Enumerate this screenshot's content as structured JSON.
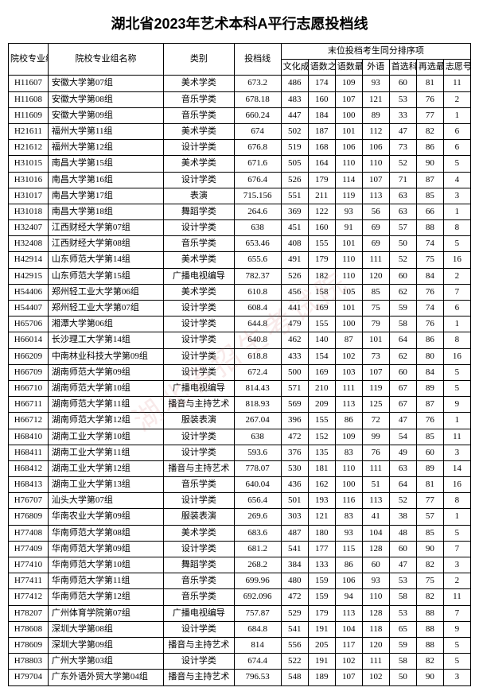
{
  "title": "湖北省2023年艺术本科A平行志愿投档线",
  "watermark": "湖北省招生考试院",
  "header": {
    "code": "院校专业组代号",
    "name": "院校专业组名称",
    "category": "类别",
    "score": "投档线",
    "tieGroup": "末位投档考生同分排序项",
    "sub": [
      "文化成绩",
      "语数之和",
      "语数最高",
      "外语",
      "首选科目",
      "再选最高",
      "志愿号"
    ]
  },
  "rows": [
    {
      "code": "H11607",
      "name": "安徽大学第07组",
      "cat": "美术学类",
      "score": "673.2",
      "s": [
        "486",
        "174",
        "109",
        "93",
        "60",
        "81",
        "11"
      ]
    },
    {
      "code": "H11608",
      "name": "安徽大学第08组",
      "cat": "音乐学类",
      "score": "678.18",
      "s": [
        "483",
        "160",
        "107",
        "121",
        "53",
        "76",
        "2"
      ]
    },
    {
      "code": "H11609",
      "name": "安徽大学第09组",
      "cat": "音乐学类",
      "score": "660.24",
      "s": [
        "447",
        "184",
        "100",
        "89",
        "33",
        "77",
        "1"
      ]
    },
    {
      "code": "H21611",
      "name": "福州大学第11组",
      "cat": "美术学类",
      "score": "674",
      "s": [
        "502",
        "187",
        "101",
        "112",
        "47",
        "82",
        "6"
      ]
    },
    {
      "code": "H21612",
      "name": "福州大学第12组",
      "cat": "设计学类",
      "score": "676.8",
      "s": [
        "519",
        "168",
        "106",
        "106",
        "73",
        "86",
        "6"
      ]
    },
    {
      "code": "H31015",
      "name": "南昌大学第15组",
      "cat": "美术学类",
      "score": "671.6",
      "s": [
        "505",
        "164",
        "110",
        "110",
        "52",
        "90",
        "5"
      ]
    },
    {
      "code": "H31016",
      "name": "南昌大学第16组",
      "cat": "设计学类",
      "score": "676.4",
      "s": [
        "526",
        "179",
        "114",
        "107",
        "71",
        "87",
        "4"
      ]
    },
    {
      "code": "H31017",
      "name": "南昌大学第17组",
      "cat": "表演",
      "score": "715.156",
      "s": [
        "551",
        "211",
        "119",
        "113",
        "63",
        "85",
        "3"
      ]
    },
    {
      "code": "H31018",
      "name": "南昌大学第18组",
      "cat": "舞蹈学类",
      "score": "264.6",
      "s": [
        "369",
        "122",
        "93",
        "56",
        "63",
        "66",
        "1"
      ]
    },
    {
      "code": "H32407",
      "name": "江西财经大学第07组",
      "cat": "设计学类",
      "score": "638",
      "s": [
        "451",
        "160",
        "91",
        "69",
        "57",
        "88",
        "8"
      ]
    },
    {
      "code": "H32408",
      "name": "江西财经大学第08组",
      "cat": "音乐学类",
      "score": "653.46",
      "s": [
        "408",
        "155",
        "101",
        "69",
        "50",
        "74",
        "5"
      ]
    },
    {
      "code": "H42914",
      "name": "山东师范大学第14组",
      "cat": "美术学类",
      "score": "655.6",
      "s": [
        "491",
        "179",
        "110",
        "111",
        "52",
        "75",
        "16"
      ]
    },
    {
      "code": "H42915",
      "name": "山东师范大学第15组",
      "cat": "广播电视编导",
      "score": "782.37",
      "s": [
        "526",
        "182",
        "110",
        "120",
        "60",
        "84",
        "2"
      ]
    },
    {
      "code": "H54406",
      "name": "郑州轻工业大学第06组",
      "cat": "美术学类",
      "score": "610.8",
      "s": [
        "456",
        "158",
        "105",
        "85",
        "62",
        "76",
        "7"
      ]
    },
    {
      "code": "H54407",
      "name": "郑州轻工业大学第07组",
      "cat": "设计学类",
      "score": "608.4",
      "s": [
        "441",
        "169",
        "101",
        "75",
        "59",
        "74",
        "6"
      ]
    },
    {
      "code": "H65706",
      "name": "湘潭大学第06组",
      "cat": "设计学类",
      "score": "644.8",
      "s": [
        "479",
        "155",
        "100",
        "79",
        "58",
        "76",
        "1"
      ]
    },
    {
      "code": "H66014",
      "name": "长沙理工大学第14组",
      "cat": "设计学类",
      "score": "640.8",
      "s": [
        "462",
        "140",
        "87",
        "101",
        "64",
        "86",
        "8"
      ]
    },
    {
      "code": "H66209",
      "name": "中南林业科技大学第09组",
      "cat": "设计学类",
      "score": "618.8",
      "s": [
        "433",
        "154",
        "102",
        "73",
        "62",
        "80",
        "16"
      ]
    },
    {
      "code": "H66709",
      "name": "湖南师范大学第09组",
      "cat": "设计学类",
      "score": "672.4",
      "s": [
        "500",
        "169",
        "103",
        "107",
        "60",
        "84",
        "5"
      ]
    },
    {
      "code": "H66710",
      "name": "湖南师范大学第10组",
      "cat": "广播电视编导",
      "score": "814.43",
      "s": [
        "571",
        "210",
        "111",
        "119",
        "67",
        "89",
        "5"
      ]
    },
    {
      "code": "H66711",
      "name": "湖南师范大学第11组",
      "cat": "播音与主持艺术",
      "score": "818.93",
      "s": [
        "569",
        "209",
        "113",
        "125",
        "67",
        "87",
        "9"
      ]
    },
    {
      "code": "H66712",
      "name": "湖南师范大学第12组",
      "cat": "服装表演",
      "score": "267.04",
      "s": [
        "396",
        "155",
        "86",
        "72",
        "47",
        "76",
        "1"
      ]
    },
    {
      "code": "H68410",
      "name": "湖南工业大学第10组",
      "cat": "设计学类",
      "score": "638",
      "s": [
        "472",
        "152",
        "109",
        "99",
        "54",
        "85",
        "11"
      ]
    },
    {
      "code": "H68411",
      "name": "湖南工业大学第11组",
      "cat": "设计学类",
      "score": "593.6",
      "s": [
        "376",
        "135",
        "83",
        "76",
        "49",
        "60",
        "3"
      ]
    },
    {
      "code": "H68412",
      "name": "湖南工业大学第12组",
      "cat": "播音与主持艺术",
      "score": "778.07",
      "s": [
        "530",
        "181",
        "110",
        "111",
        "63",
        "89",
        "14"
      ]
    },
    {
      "code": "H68413",
      "name": "湖南工业大学第13组",
      "cat": "音乐学类",
      "score": "640.04",
      "s": [
        "436",
        "162",
        "100",
        "51",
        "64",
        "81",
        "16"
      ]
    },
    {
      "code": "H76707",
      "name": "汕头大学第07组",
      "cat": "设计学类",
      "score": "656.4",
      "s": [
        "501",
        "193",
        "116",
        "113",
        "52",
        "77",
        "8"
      ]
    },
    {
      "code": "H76809",
      "name": "华南农业大学第09组",
      "cat": "服装表演",
      "score": "269.6",
      "s": [
        "303",
        "121",
        "83",
        "41",
        "38",
        "57",
        "1"
      ]
    },
    {
      "code": "H77408",
      "name": "华南师范大学第08组",
      "cat": "美术学类",
      "score": "683.6",
      "s": [
        "487",
        "180",
        "93",
        "104",
        "48",
        "85",
        "5"
      ]
    },
    {
      "code": "H77409",
      "name": "华南师范大学第09组",
      "cat": "设计学类",
      "score": "681.2",
      "s": [
        "541",
        "177",
        "115",
        "128",
        "60",
        "90",
        "7"
      ]
    },
    {
      "code": "H77410",
      "name": "华南师范大学第10组",
      "cat": "舞蹈学类",
      "score": "268.2",
      "s": [
        "384",
        "133",
        "86",
        "60",
        "47",
        "82",
        "3"
      ]
    },
    {
      "code": "H77411",
      "name": "华南师范大学第11组",
      "cat": "音乐学类",
      "score": "699.96",
      "s": [
        "480",
        "159",
        "106",
        "93",
        "53",
        "75",
        "2"
      ]
    },
    {
      "code": "H77412",
      "name": "华南师范大学第12组",
      "cat": "音乐学类",
      "score": "692.096",
      "s": [
        "472",
        "159",
        "94",
        "110",
        "58",
        "82",
        "11"
      ]
    },
    {
      "code": "H78207",
      "name": "广州体育学院第07组",
      "cat": "广播电视编导",
      "score": "757.87",
      "s": [
        "529",
        "179",
        "113",
        "128",
        "53",
        "88",
        "7"
      ]
    },
    {
      "code": "H78608",
      "name": "深圳大学第08组",
      "cat": "设计学类",
      "score": "684.8",
      "s": [
        "541",
        "191",
        "104",
        "118",
        "65",
        "88",
        "9"
      ]
    },
    {
      "code": "H78609",
      "name": "深圳大学第09组",
      "cat": "播音与主持艺术",
      "score": "814",
      "s": [
        "556",
        "205",
        "117",
        "120",
        "59",
        "88",
        "5"
      ]
    },
    {
      "code": "H78803",
      "name": "广州大学第03组",
      "cat": "设计学类",
      "score": "674.4",
      "s": [
        "522",
        "191",
        "102",
        "111",
        "58",
        "82",
        "5"
      ]
    },
    {
      "code": "H79704",
      "name": "广东外语外贸大学第04组",
      "cat": "播音与主持艺术",
      "score": "796.53",
      "s": [
        "548",
        "189",
        "107",
        "102",
        "50",
        "90",
        "3"
      ]
    }
  ]
}
